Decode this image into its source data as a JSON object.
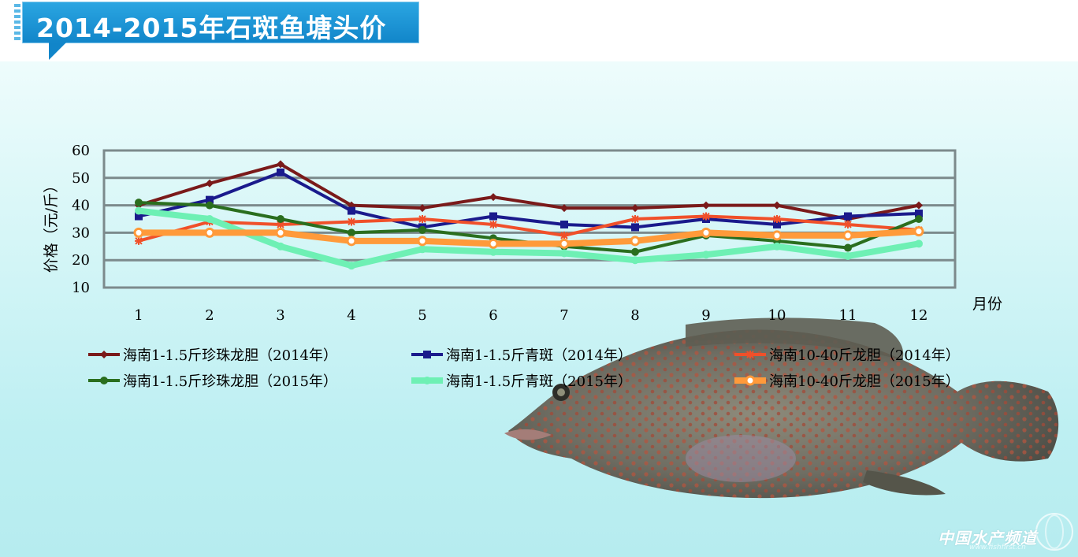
{
  "header": {
    "title": "2014-2015年石斑鱼塘头价"
  },
  "watermark": {
    "brand": "中国水产频道",
    "url": "www.fishfirst.cn"
  },
  "chart_data": {
    "type": "line",
    "title": "2014-2015年石斑鱼塘头价",
    "xlabel": "月份",
    "ylabel": "价格（元/斤）",
    "categories": [
      "1",
      "2",
      "3",
      "4",
      "5",
      "6",
      "7",
      "8",
      "9",
      "10",
      "11",
      "12"
    ],
    "ylim": [
      10,
      60
    ],
    "yticks": [
      "10",
      "20",
      "30",
      "40",
      "50",
      "60"
    ],
    "grid": true,
    "legend_position": "bottom",
    "series": [
      {
        "name": "海南1-1.5斤珍珠龙胆（2014年）",
        "color": "#7a1a1a",
        "marker": "diamond",
        "values": [
          40,
          48,
          55,
          40,
          39,
          43,
          39,
          39,
          40,
          40,
          35,
          40
        ]
      },
      {
        "name": "海南1-1.5斤青斑（2014年）",
        "color": "#1a1a8c",
        "marker": "square",
        "values": [
          36,
          42,
          52,
          38,
          32,
          36,
          33,
          32,
          35,
          33,
          36,
          37
        ]
      },
      {
        "name": "海南10-40斤龙胆（2014年）",
        "color": "#f0502a",
        "marker": "star",
        "values": [
          27,
          34,
          33,
          34,
          35,
          33,
          29,
          35,
          36,
          35,
          33,
          31
        ]
      },
      {
        "name": "海南1-1.5斤珍珠龙胆（2015年）",
        "color": "#2a6e1e",
        "marker": "circle",
        "values": [
          41,
          40,
          35,
          30,
          31,
          28,
          25,
          23,
          29,
          27,
          24.5,
          35
        ]
      },
      {
        "name": "海南1-1.5斤青斑（2015年）",
        "color": "#6ef0b4",
        "marker": "circle",
        "values": [
          38,
          35,
          25,
          18,
          24,
          23,
          22.5,
          20,
          22,
          25,
          21.5,
          26
        ]
      },
      {
        "name": "海南10-40斤龙胆（2015年）",
        "color": "#ff9a3a",
        "marker": "ring",
        "values": [
          30,
          30,
          30,
          27,
          27,
          26,
          26,
          27,
          30,
          29,
          29,
          30.5
        ]
      }
    ]
  }
}
